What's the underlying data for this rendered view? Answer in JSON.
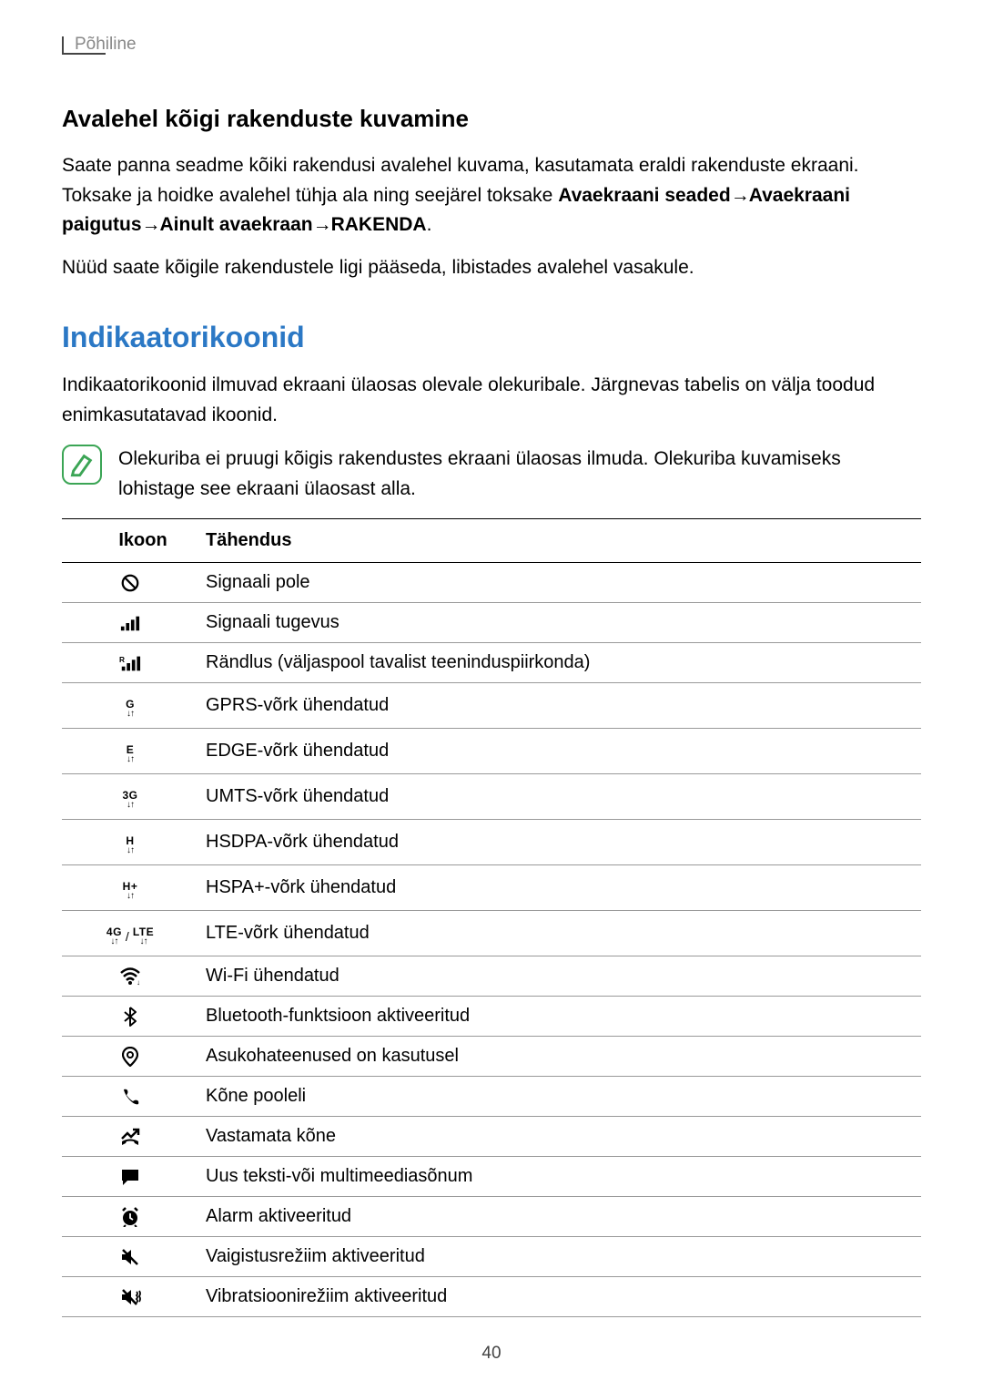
{
  "header": "Põhiline",
  "section1": {
    "heading": "Avalehel kõigi rakenduste kuvamine",
    "para1_pre": "Saate panna seadme kõiki rakendusi avalehel kuvama, kasutamata eraldi rakenduste ekraani. Toksake ja hoidke avalehel tühja ala ning seejärel toksake ",
    "bold1": "Avaekraani seaded",
    "bold2": "Avaekraani paigutus",
    "bold3": "Ainult avaekraan",
    "bold4": "RAKENDA",
    "para2": "Nüüd saate kõigile rakendustele ligi pääseda, libistades avalehel vasakule."
  },
  "section2": {
    "heading": "Indikaatorikoonid",
    "para1": "Indikaatorikoonid ilmuvad ekraani ülaosas olevale olekuribale. Järgnevas tabelis on välja toodud enimkasutatavad ikoonid.",
    "note": "Olekuriba ei pruugi kõigis rakendustes ekraani ülaosas ilmuda. Olekuriba kuvamiseks lohistage see ekraani ülaosast alla."
  },
  "table": {
    "col1": "Ikoon",
    "col2": "Tähendus",
    "rows": [
      {
        "icon": "no-signal",
        "text": "Signaali pole"
      },
      {
        "icon": "signal",
        "text": "Signaali tugevus"
      },
      {
        "icon": "roaming",
        "text": "Rändlus (väljaspool tavalist teeninduspiirkonda)"
      },
      {
        "icon": "gprs",
        "label": "G",
        "text": "GPRS-võrk ühendatud"
      },
      {
        "icon": "edge",
        "label": "E",
        "text": "EDGE-võrk ühendatud"
      },
      {
        "icon": "umts",
        "label": "3G",
        "text": "UMTS-võrk ühendatud"
      },
      {
        "icon": "hsdpa",
        "label": "H",
        "text": "HSDPA-võrk ühendatud"
      },
      {
        "icon": "hspa",
        "label": "H+",
        "text": "HSPA+-võrk ühendatud"
      },
      {
        "icon": "lte",
        "label": "4G / LTE",
        "text": "LTE-võrk ühendatud"
      },
      {
        "icon": "wifi",
        "text": "Wi-Fi ühendatud"
      },
      {
        "icon": "bluetooth",
        "text": "Bluetooth-funktsioon aktiveeritud"
      },
      {
        "icon": "location",
        "text": "Asukohateenused on kasutusel"
      },
      {
        "icon": "call",
        "text": "Kõne pooleli"
      },
      {
        "icon": "missed-call",
        "text": "Vastamata kõne"
      },
      {
        "icon": "message",
        "text": "Uus teksti-või multimeediasõnum"
      },
      {
        "icon": "alarm",
        "text": "Alarm aktiveeritud"
      },
      {
        "icon": "mute",
        "text": "Vaigistusrežiim aktiveeritud"
      },
      {
        "icon": "vibrate",
        "text": "Vibratsioonirežiim aktiveeritud"
      }
    ]
  },
  "pageNumber": "40",
  "arrow": "→"
}
